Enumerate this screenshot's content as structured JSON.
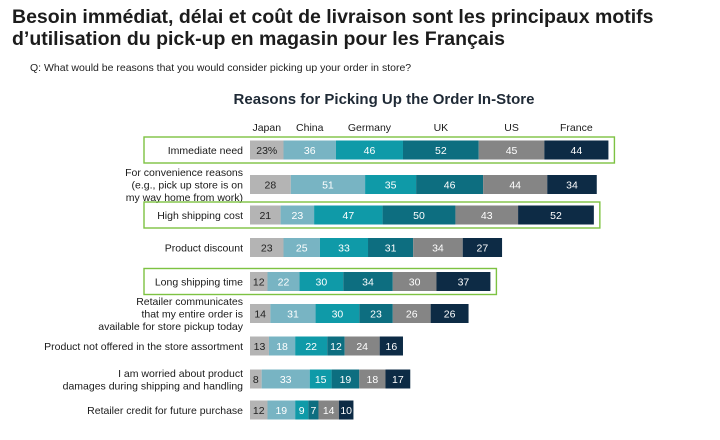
{
  "headline": "Besoin immédiat, délai et coût de livraison sont les principaux motifs d’utilisation du pick-up en magasin pour les Français",
  "question": "Q: What would be reasons that you would consider picking up your order in store?",
  "colors": {
    "Japan": "#b4b4b4",
    "China": "#78b4c3",
    "Germany": "#0f9aa8",
    "UK": "#0d6e80",
    "US": "#858585",
    "France": "#0d2b45",
    "highlight_border": "#7dc242"
  },
  "chart_data": {
    "type": "bar",
    "orientation": "horizontal",
    "stacked": true,
    "title": "Reasons for Picking Up the Order In-Store",
    "unit_suffix_first_cell": "%",
    "categories": [
      [
        "Immediate need"
      ],
      [
        "For convenience reasons",
        "(e.g., pick up store is on",
        "my way home from work)"
      ],
      [
        "High shipping cost"
      ],
      [
        "Product discount"
      ],
      [
        "Long shipping time"
      ],
      [
        "Retailer communicates",
        "that my entire order is",
        "available for store pickup today"
      ],
      [
        "Product not offered in the store assortment"
      ],
      [
        "I am worried about product",
        "damages during shipping and handling"
      ],
      [
        "Retailer credit for future purchase"
      ]
    ],
    "highlighted": [
      true,
      false,
      true,
      false,
      true,
      false,
      false,
      false,
      false
    ],
    "series": [
      {
        "name": "Japan",
        "values": [
          23,
          28,
          21,
          23,
          12,
          14,
          13,
          8,
          12
        ]
      },
      {
        "name": "China",
        "values": [
          36,
          51,
          23,
          25,
          22,
          31,
          18,
          33,
          19
        ]
      },
      {
        "name": "Germany",
        "values": [
          46,
          35,
          47,
          33,
          30,
          30,
          22,
          15,
          9
        ]
      },
      {
        "name": "UK",
        "values": [
          52,
          46,
          50,
          31,
          34,
          23,
          12,
          19,
          7
        ]
      },
      {
        "name": "US",
        "values": [
          45,
          44,
          43,
          34,
          30,
          26,
          24,
          18,
          14
        ]
      },
      {
        "name": "France",
        "values": [
          44,
          34,
          52,
          27,
          37,
          26,
          16,
          17,
          10
        ]
      }
    ]
  }
}
